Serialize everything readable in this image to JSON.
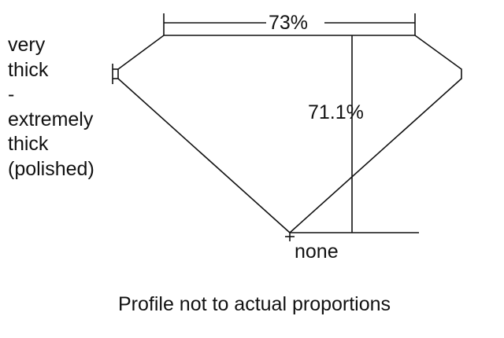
{
  "diagram": {
    "table_percent": "73%",
    "depth_percent": "71.1%",
    "girdle_label_lines": [
      "very",
      "thick",
      "-",
      "extremely",
      "thick",
      "(polished)"
    ],
    "culet_label": "none",
    "caption": "Profile not to actual proportions",
    "line_color": "#111111"
  }
}
